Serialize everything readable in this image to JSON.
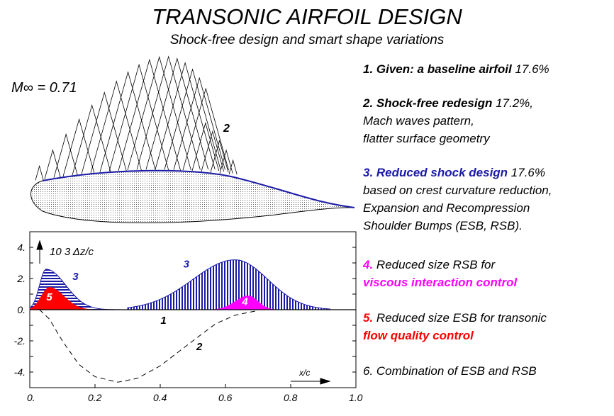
{
  "title": "TRANSONIC AIRFOIL DESIGN",
  "subtitle": "Shock-free design and smart shape variations",
  "mach_label": "M∞ = 0.71",
  "wave_label": "2",
  "items": [
    {
      "lines": [
        {
          "b": "1. Given: a baseline airfoil",
          "n": " 17.6%"
        }
      ],
      "color": "#000"
    },
    {
      "lines": [
        {
          "b": "2. Shock-free redesign",
          "n": " 17.2%,"
        },
        {
          "n": "Mach waves pattern,"
        },
        {
          "n": "flatter surface geometry"
        }
      ],
      "color": "#000"
    },
    {
      "lines": [
        {
          "b": "3. Reduced shock design",
          "n": " 17.6%"
        },
        {
          "n": "based on crest curvature reduction,"
        },
        {
          "n": "Expansion and Recompression"
        },
        {
          "n": "Shoulder Bumps (ESB, RSB)."
        }
      ],
      "color": "#1a1aa8"
    },
    {
      "lines": [
        {
          "p": "4.",
          "n": " Reduced size RSB for"
        },
        {
          "b": "viscous interaction control"
        }
      ],
      "color": "#ff00ff"
    },
    {
      "lines": [
        {
          "p": "5.",
          "n": " Reduced size ESB for transonic"
        },
        {
          "b": "flow quality control"
        }
      ],
      "color": "#ff0000"
    },
    {
      "lines": [
        {
          "n": "6. Combination of ESB and RSB"
        }
      ],
      "color": "#000"
    }
  ],
  "chart_data": {
    "type": "area",
    "ylabel": "10 3 Δz/c",
    "xlabel": "x/c",
    "xlim": [
      0,
      1
    ],
    "ylim": [
      -5,
      5
    ],
    "xticks": [
      "0.",
      "0.2",
      "0.4",
      "0.6",
      "0.8",
      "1.0"
    ],
    "yticks": [
      {
        "v": 4,
        "l": "4."
      },
      {
        "v": 2,
        "l": "2."
      },
      {
        "v": 0,
        "l": "0."
      },
      {
        "v": -2,
        "l": "-2."
      },
      {
        "v": -4,
        "l": "-4."
      }
    ],
    "series": [
      {
        "name": "3",
        "color": "#1a1aa8",
        "bumps": [
          {
            "c": 0.05,
            "h": 2.6,
            "wl": 0.02,
            "wr": 0.06
          },
          {
            "c": 0.63,
            "h": 3.2,
            "wl": 0.13,
            "wr": 0.1
          }
        ]
      },
      {
        "name": "5",
        "color": "#ff0000",
        "bumps": [
          {
            "c": 0.06,
            "h": 1.45,
            "wl": 0.025,
            "wr": 0.045
          }
        ],
        "range": [
          0,
          0.2
        ]
      },
      {
        "name": "4",
        "color": "#ff00ff",
        "bumps": [
          {
            "c": 0.67,
            "h": 0.9,
            "wl": 0.04,
            "wr": 0.03
          }
        ],
        "range": [
          0.56,
          0.76
        ]
      },
      {
        "name": "2",
        "color": "#000",
        "points": [
          [
            0.03,
            0
          ],
          [
            0.06,
            -0.6
          ],
          [
            0.1,
            -2
          ],
          [
            0.15,
            -3.5
          ],
          [
            0.2,
            -4.3
          ],
          [
            0.27,
            -4.65
          ],
          [
            0.33,
            -4.4
          ],
          [
            0.4,
            -3.6
          ],
          [
            0.5,
            -2
          ],
          [
            0.57,
            -0.9
          ],
          [
            0.63,
            -0.35
          ],
          [
            0.7,
            -0.05
          ]
        ]
      },
      {
        "name": "1",
        "color": "#000",
        "points": [
          [
            0,
            0
          ],
          [
            1,
            0
          ]
        ]
      }
    ],
    "labels": [
      {
        "t": "3",
        "x": 0.14,
        "y": 1.9,
        "c": "#1a1aa8"
      },
      {
        "t": "3",
        "x": 0.48,
        "y": 2.7,
        "c": "#1a1aa8"
      },
      {
        "t": "5",
        "x": 0.06,
        "y": 0.6,
        "c": "#fff"
      },
      {
        "t": "4",
        "x": 0.66,
        "y": 0.3,
        "c": "#fff"
      },
      {
        "t": "1",
        "x": 0.41,
        "y": -0.9,
        "c": "#000"
      },
      {
        "t": "2",
        "x": 0.52,
        "y": -2.6,
        "c": "#000"
      }
    ]
  }
}
